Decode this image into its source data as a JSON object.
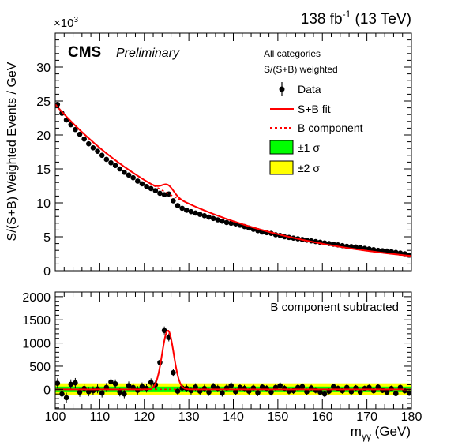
{
  "header": {
    "lumi_label": "138 fb",
    "lumi_sup": "-1",
    "energy_label": " (13 TeV)",
    "experiment": "CMS",
    "status": "Preliminary",
    "multiplier_prefix": "×10",
    "multiplier_exp": "3"
  },
  "chart_data": [
    {
      "type": "scatter",
      "panel": "top",
      "ylabel": "S/(S+B) Weighted Events / GeV",
      "xlim": [
        100,
        180
      ],
      "ylim": [
        0,
        35
      ],
      "yticks": [
        "0",
        "5",
        "10",
        "15",
        "20",
        "25",
        "30"
      ],
      "info_lines": [
        "All categories",
        "S/(S+B) weighted"
      ],
      "legend": {
        "position": "top-right",
        "entries": [
          {
            "label": "Data",
            "symbol": "marker"
          },
          {
            "label": "S+B fit",
            "symbol": "line",
            "color": "#ff0000"
          },
          {
            "label": "B component",
            "symbol": "dashed",
            "color": "#ff0000"
          },
          {
            "label": "±1 σ",
            "symbol": "box",
            "color": "#00ff00"
          },
          {
            "label": "±2 σ",
            "symbol": "box",
            "color": "#ffff00"
          }
        ]
      },
      "series": [
        {
          "name": "Data",
          "x": [
            100.5,
            101.5,
            102.5,
            103.5,
            104.5,
            105.5,
            106.5,
            107.5,
            108.5,
            109.5,
            110.5,
            111.5,
            112.5,
            113.5,
            114.5,
            115.5,
            116.5,
            117.5,
            118.5,
            119.5,
            120.5,
            121.5,
            122.5,
            123.5,
            124.5,
            125.5,
            126.5,
            127.5,
            128.5,
            129.5,
            130.5,
            131.5,
            132.5,
            133.5,
            134.5,
            135.5,
            136.5,
            137.5,
            138.5,
            139.5,
            140.5,
            141.5,
            142.5,
            143.5,
            144.5,
            145.5,
            146.5,
            147.5,
            148.5,
            149.5,
            150.5,
            151.5,
            152.5,
            153.5,
            154.5,
            155.5,
            156.5,
            157.5,
            158.5,
            159.5,
            160.5,
            161.5,
            162.5,
            163.5,
            164.5,
            165.5,
            166.5,
            167.5,
            168.5,
            169.5,
            170.5,
            171.5,
            172.5,
            173.5,
            174.5,
            175.5,
            176.5,
            177.5,
            178.5,
            179.5
          ],
          "y": [
            24.5,
            23.2,
            22.2,
            21.5,
            20.8,
            20.1,
            19.4,
            18.7,
            18.1,
            17.6,
            17.0,
            16.4,
            15.9,
            15.5,
            15.0,
            14.5,
            14.1,
            13.7,
            13.2,
            12.8,
            12.4,
            12.1,
            11.8,
            11.4,
            11.2,
            11.3,
            10.3,
            9.6,
            9.2,
            8.9,
            8.7,
            8.5,
            8.3,
            8.1,
            7.9,
            7.7,
            7.5,
            7.3,
            7.1,
            7.0,
            6.9,
            6.7,
            6.5,
            6.3,
            6.1,
            5.9,
            5.7,
            5.6,
            5.5,
            5.3,
            5.2,
            5.0,
            4.9,
            4.8,
            4.7,
            4.6,
            4.5,
            4.4,
            4.3,
            4.2,
            4.1,
            4.0,
            3.9,
            3.8,
            3.7,
            3.6,
            3.55,
            3.5,
            3.4,
            3.3,
            3.2,
            3.1,
            3.0,
            2.95,
            2.9,
            2.8,
            2.7,
            2.6,
            2.5,
            2.3
          ]
        }
      ],
      "background_fit": {
        "model": "exponential",
        "a": 24.5,
        "b": 0.0303,
        "x0": 100
      },
      "signal_fit": {
        "mass": 125.3,
        "width": 1.3,
        "amplitude": 1.27
      }
    },
    {
      "type": "scatter",
      "panel": "bottom",
      "xlabel_main": "m",
      "xlabel_sub": "γγ",
      "xlabel_unit": " (GeV)",
      "annotation": "B component subtracted",
      "xlim": [
        100,
        180
      ],
      "ylim": [
        -420,
        2100
      ],
      "xticks": [
        "100",
        "110",
        "120",
        "130",
        "140",
        "150",
        "160",
        "170",
        "180"
      ],
      "yticks": [
        "0",
        "500",
        "1000",
        "1500",
        "2000"
      ],
      "band_1sigma": [
        -60,
        60
      ],
      "band_2sigma": [
        -130,
        130
      ],
      "series": [
        {
          "name": "Data",
          "x": [
            100.5,
            101.5,
            102.5,
            103.5,
            104.5,
            105.5,
            106.5,
            107.5,
            108.5,
            109.5,
            110.5,
            111.5,
            112.5,
            113.5,
            114.5,
            115.5,
            116.5,
            117.5,
            118.5,
            119.5,
            120.5,
            121.5,
            122.5,
            123.5,
            124.5,
            125.5,
            126.5,
            127.5,
            128.5,
            129.5,
            130.5,
            131.5,
            132.5,
            133.5,
            134.5,
            135.5,
            136.5,
            137.5,
            138.5,
            139.5,
            140.5,
            141.5,
            142.5,
            143.5,
            144.5,
            145.5,
            146.5,
            147.5,
            148.5,
            149.5,
            150.5,
            151.5,
            152.5,
            153.5,
            154.5,
            155.5,
            156.5,
            157.5,
            158.5,
            159.5,
            160.5,
            161.5,
            162.5,
            163.5,
            164.5,
            165.5,
            166.5,
            167.5,
            168.5,
            169.5,
            170.5,
            171.5,
            172.5,
            173.5,
            174.5,
            175.5,
            176.5,
            177.5,
            178.5,
            179.5
          ],
          "y": [
            130,
            -100,
            -180,
            110,
            140,
            -60,
            20,
            -50,
            -30,
            10,
            -80,
            40,
            160,
            120,
            -60,
            -100,
            80,
            40,
            -20,
            60,
            20,
            150,
            100,
            580,
            1270,
            1120,
            360,
            -40,
            30,
            20,
            -30,
            50,
            -40,
            20,
            -60,
            60,
            20,
            -80,
            30,
            80,
            -50,
            40,
            20,
            -40,
            30,
            -70,
            50,
            20,
            -60,
            40,
            80,
            20,
            -40,
            -30,
            40,
            60,
            -50,
            30,
            -20,
            -60,
            -100,
            -40,
            60,
            20,
            -30,
            40,
            -50,
            30,
            -60,
            20,
            40,
            -30,
            50,
            -20,
            -60,
            20,
            -90,
            40,
            -30,
            -80
          ],
          "yerr": [
            110,
            110,
            110,
            105,
            105,
            100,
            100,
            100,
            95,
            95,
            95,
            95,
            95,
            95,
            92,
            92,
            90,
            90,
            90,
            88,
            88,
            88,
            86,
            86,
            86,
            84,
            84,
            84,
            82,
            82,
            82,
            80,
            80,
            80,
            78,
            78,
            78,
            76,
            76,
            76,
            75,
            75,
            75,
            74,
            74,
            73,
            72,
            72,
            72,
            71,
            71,
            70,
            70,
            69,
            69,
            68,
            68,
            68,
            67,
            67,
            66,
            66,
            65,
            65,
            64,
            64,
            63,
            63,
            62,
            62,
            62,
            61,
            61,
            60,
            60,
            60,
            59,
            59,
            58,
            58
          ]
        }
      ]
    }
  ]
}
